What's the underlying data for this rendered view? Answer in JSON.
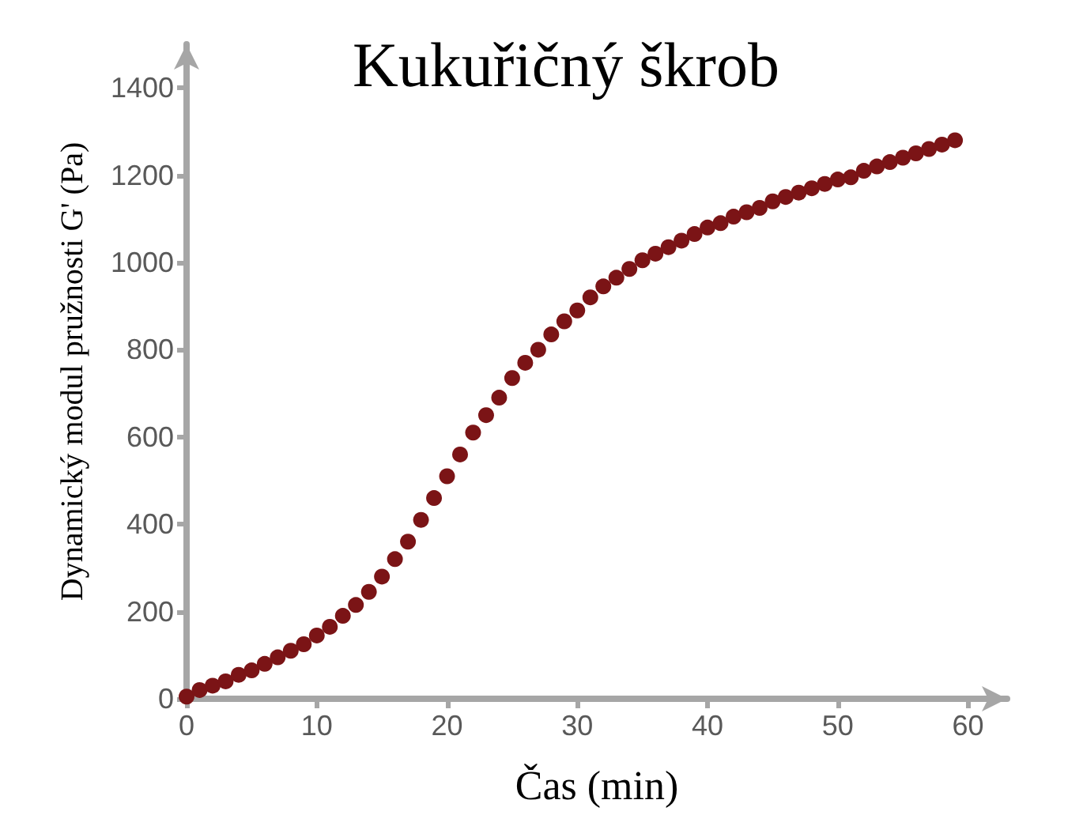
{
  "chart_data": {
    "type": "scatter",
    "title": "Kukuřičný škrob",
    "xlabel": "Čas (min)",
    "ylabel": "Dynamický modul pružnosti G' (Pa)",
    "x": [
      0,
      1,
      2,
      3,
      4,
      5,
      6,
      7,
      8,
      9,
      10,
      11,
      12,
      13,
      14,
      15,
      16,
      17,
      18,
      19,
      20,
      21,
      22,
      23,
      24,
      25,
      26,
      27,
      28,
      29,
      30,
      31,
      32,
      33,
      34,
      35,
      36,
      37,
      38,
      39,
      40,
      41,
      42,
      43,
      44,
      45,
      46,
      47,
      48,
      49,
      50,
      51,
      52,
      53,
      54,
      55,
      56,
      57,
      58,
      59
    ],
    "series": [
      {
        "color": "#7b1416",
        "values": [
          5,
          20,
          30,
          40,
          55,
          65,
          80,
          95,
          110,
          125,
          145,
          165,
          190,
          215,
          245,
          280,
          320,
          360,
          410,
          460,
          510,
          560,
          610,
          650,
          690,
          735,
          770,
          800,
          835,
          865,
          890,
          920,
          945,
          965,
          985,
          1005,
          1020,
          1035,
          1050,
          1065,
          1080,
          1090,
          1105,
          1115,
          1125,
          1140,
          1150,
          1160,
          1170,
          1180,
          1190,
          1195,
          1210,
          1220,
          1230,
          1240,
          1250,
          1260,
          1270,
          1280
        ]
      }
    ],
    "xlim": [
      0,
      63
    ],
    "ylim": [
      0,
      1500
    ],
    "xticks": [
      0,
      10,
      20,
      30,
      40,
      50,
      60
    ],
    "yticks": [
      0,
      200,
      400,
      600,
      800,
      1000,
      1200,
      1400
    ],
    "grid": false,
    "marker": "circle"
  }
}
